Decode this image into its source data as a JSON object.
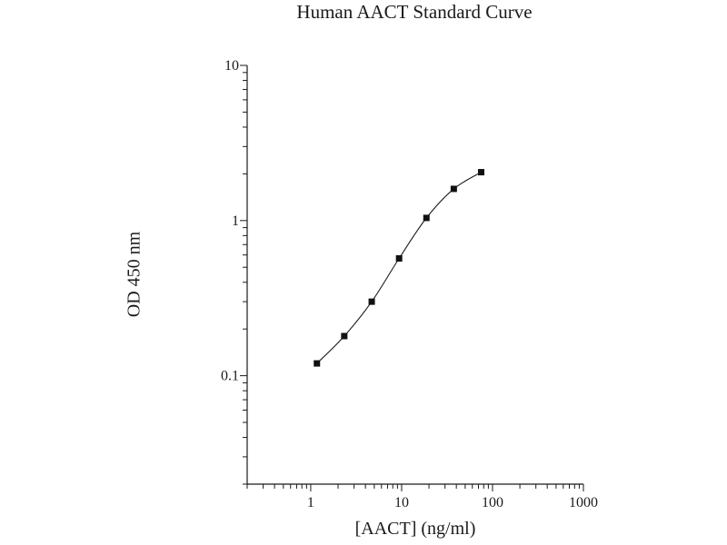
{
  "chart_data": {
    "type": "scatter",
    "title": "Human AACT Standard Curve",
    "xlabel": "[AACT] (ng/ml)",
    "ylabel": "OD 450 nm",
    "x_scale": "log",
    "y_scale": "log",
    "xlim": [
      0.2,
      1000
    ],
    "ylim": [
      0.02,
      10
    ],
    "x_tick_labels": [
      "1",
      "10",
      "100",
      "1000"
    ],
    "y_tick_labels": [
      "0.1",
      "1",
      "10"
    ],
    "grid": false,
    "legend": "none",
    "marker": "square",
    "color": "#111111",
    "series": [
      {
        "x": [
          1.17,
          2.34,
          4.69,
          9.38,
          18.75,
          37.5,
          75
        ],
        "y": [
          0.12,
          0.18,
          0.3,
          0.57,
          1.04,
          1.6,
          2.05
        ]
      }
    ]
  }
}
